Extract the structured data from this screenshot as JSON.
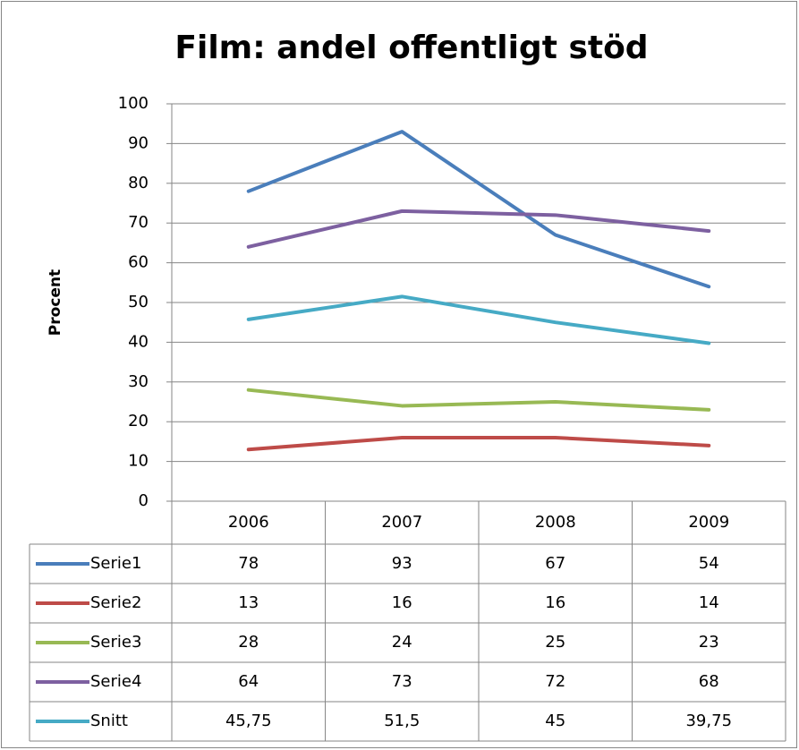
{
  "chart_data": {
    "type": "line",
    "title": "Film: andel offentligt stöd",
    "y_label": "Procent",
    "categories": [
      "2006",
      "2007",
      "2008",
      "2009"
    ],
    "series": [
      {
        "name": "Serie1",
        "color": "#4a7ebb",
        "values": [
          78,
          93,
          67,
          54
        ]
      },
      {
        "name": "Serie2",
        "color": "#be4b48",
        "values": [
          13,
          16,
          16,
          14
        ]
      },
      {
        "name": "Serie3",
        "color": "#98b954",
        "values": [
          28,
          24,
          25,
          23
        ]
      },
      {
        "name": "Serie4",
        "color": "#7d60a0",
        "values": [
          64,
          73,
          72,
          68
        ]
      },
      {
        "name": "Snitt",
        "color": "#46aac5",
        "values": [
          45.75,
          51.5,
          45,
          39.75
        ],
        "value_labels": [
          "45,75",
          "51,5",
          "45",
          "39,75"
        ]
      }
    ],
    "ylim": [
      0,
      100
    ],
    "yticks": [
      0,
      10,
      20,
      30,
      40,
      50,
      60,
      70,
      80,
      90,
      100
    ],
    "grid": true,
    "data_table": true
  }
}
